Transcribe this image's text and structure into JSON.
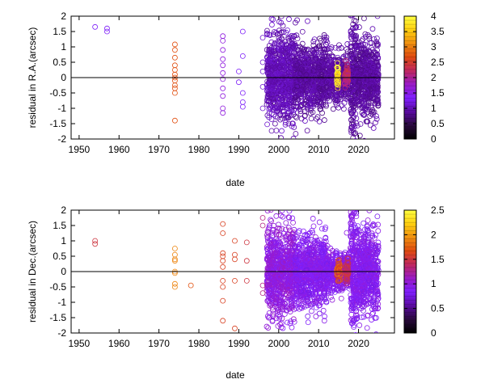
{
  "chart_data": [
    {
      "type": "scatter",
      "xlabel": "date",
      "ylabel": "residual in R.A.(arcsec)",
      "xlim": [
        1948,
        2029
      ],
      "ylim": [
        -2,
        2
      ],
      "xticks": [
        "1950",
        "1960",
        "1970",
        "1980",
        "1990",
        "2000",
        "2010",
        "2020"
      ],
      "yticks": [
        "2",
        "1.5",
        "1",
        "0.5",
        "0",
        "-0.5",
        "-1",
        "-1.5",
        "-2"
      ],
      "zero_line": true,
      "marker": "open-circle",
      "colorbar": {
        "min": 0,
        "max": 4,
        "ticks": [
          "4",
          "3.5",
          "3",
          "2.5",
          "2",
          "1.5",
          "1",
          "0.5",
          "0"
        ],
        "palette": [
          "#000000",
          "#2a0a3e",
          "#5a0aa0",
          "#8020ff",
          "#9a1ac8",
          "#c02860",
          "#e04a10",
          "#f09010",
          "#ffd010",
          "#ffff40"
        ]
      },
      "groups": [
        {
          "year": 1954,
          "values": [
            1.65
          ],
          "weight": 1.3
        },
        {
          "year": 1957,
          "values": [
            1.5,
            1.6
          ],
          "weight": 1.3
        },
        {
          "year": 1974,
          "values": [
            1.08,
            0.9,
            0.65,
            0.4,
            0.25,
            0.1,
            0.0,
            -0.1,
            -0.25,
            -0.35,
            -0.5,
            -1.4
          ],
          "weight": 2.7
        },
        {
          "year": 1986,
          "values": [
            1.35,
            1.2,
            0.9,
            0.6,
            0.4,
            0.15,
            -0.05,
            -0.35,
            -0.6,
            -1.0,
            -1.15
          ],
          "weight": 1.6
        },
        {
          "year": 1990,
          "values": [
            0.2,
            -0.15
          ],
          "weight": 1.3
        },
        {
          "year": 1991,
          "values": [
            1.5,
            0.7,
            -0.5,
            -0.8,
            -0.95
          ],
          "weight": 1.3
        },
        {
          "year": 1996,
          "values": [
            1.3,
            0.5,
            0.2,
            -0.3,
            -1.0
          ],
          "weight": 1.1
        }
      ],
      "clusters": [
        {
          "from": 1997,
          "to": 2004,
          "spread": 1.3,
          "weight": 1.0
        },
        {
          "from": 2004,
          "to": 2012,
          "spread": 1.0,
          "weight": 0.9
        },
        {
          "from": 2012,
          "to": 2018,
          "spread": 0.7,
          "weight": 0.9
        },
        {
          "from": 2018,
          "to": 2019.5,
          "spread": 1.8,
          "weight": 0.9
        },
        {
          "from": 2019.5,
          "to": 2025,
          "spread": 1.1,
          "weight": 0.9
        },
        {
          "from": 2014.5,
          "to": 2015,
          "spread": 0.35,
          "weight": 3.8
        },
        {
          "from": 2016.5,
          "to": 2017.5,
          "spread": 0.3,
          "weight": 2.2
        }
      ]
    },
    {
      "type": "scatter",
      "xlabel": "date",
      "ylabel": "residual in Dec.(arcsec)",
      "xlim": [
        1948,
        2029
      ],
      "ylim": [
        -2,
        2
      ],
      "xticks": [
        "1950",
        "1960",
        "1970",
        "1980",
        "1990",
        "2000",
        "2010",
        "2020"
      ],
      "yticks": [
        "2",
        "1.5",
        "1",
        "0.5",
        "0",
        "-0.5",
        "-1",
        "-1.5",
        "-2"
      ],
      "zero_line": true,
      "marker": "open-circle",
      "colorbar": {
        "min": 0,
        "max": 2.5,
        "ticks": [
          "2.5",
          "2",
          "1.5",
          "1",
          "0.5",
          "0"
        ],
        "palette": [
          "#000000",
          "#2a0a3e",
          "#5a0aa0",
          "#8020ff",
          "#9a1ac8",
          "#c02860",
          "#e04a10",
          "#f09010",
          "#ffd010",
          "#ffff40"
        ]
      },
      "groups": [
        {
          "year": 1954,
          "values": [
            1.0,
            0.9
          ],
          "weight": 1.5
        },
        {
          "year": 1974,
          "values": [
            0.75,
            0.55,
            0.4,
            0.35,
            0.0,
            -0.05,
            -0.4,
            -0.5
          ],
          "weight": 1.9
        },
        {
          "year": 1978,
          "values": [
            -0.45
          ],
          "weight": 1.7
        },
        {
          "year": 1986,
          "values": [
            1.55,
            1.25,
            0.6,
            0.5,
            0.35,
            0.15,
            -0.3,
            -0.5,
            -0.95,
            -1.6
          ],
          "weight": 1.6
        },
        {
          "year": 1989,
          "values": [
            1.0,
            0.55,
            0.4,
            -0.3,
            -1.85
          ],
          "weight": 1.6
        },
        {
          "year": 1992,
          "values": [
            0.95,
            0.35,
            -0.3
          ],
          "weight": 1.5
        },
        {
          "year": 1996,
          "values": [
            1.75,
            1.5,
            -0.45,
            -0.7
          ],
          "weight": 1.3
        }
      ],
      "clusters": [
        {
          "from": 1997,
          "to": 2004,
          "spread": 1.3,
          "weight": 1.0
        },
        {
          "from": 2004,
          "to": 2012,
          "spread": 1.0,
          "weight": 0.9
        },
        {
          "from": 2012,
          "to": 2018,
          "spread": 0.6,
          "weight": 0.9
        },
        {
          "from": 2018,
          "to": 2019.5,
          "spread": 1.9,
          "weight": 0.9
        },
        {
          "from": 2019.5,
          "to": 2025,
          "spread": 1.2,
          "weight": 0.9
        },
        {
          "from": 2014.5,
          "to": 2015.5,
          "spread": 0.3,
          "weight": 1.6
        },
        {
          "from": 2016.5,
          "to": 2017.5,
          "spread": 0.3,
          "weight": 1.4
        }
      ]
    }
  ]
}
